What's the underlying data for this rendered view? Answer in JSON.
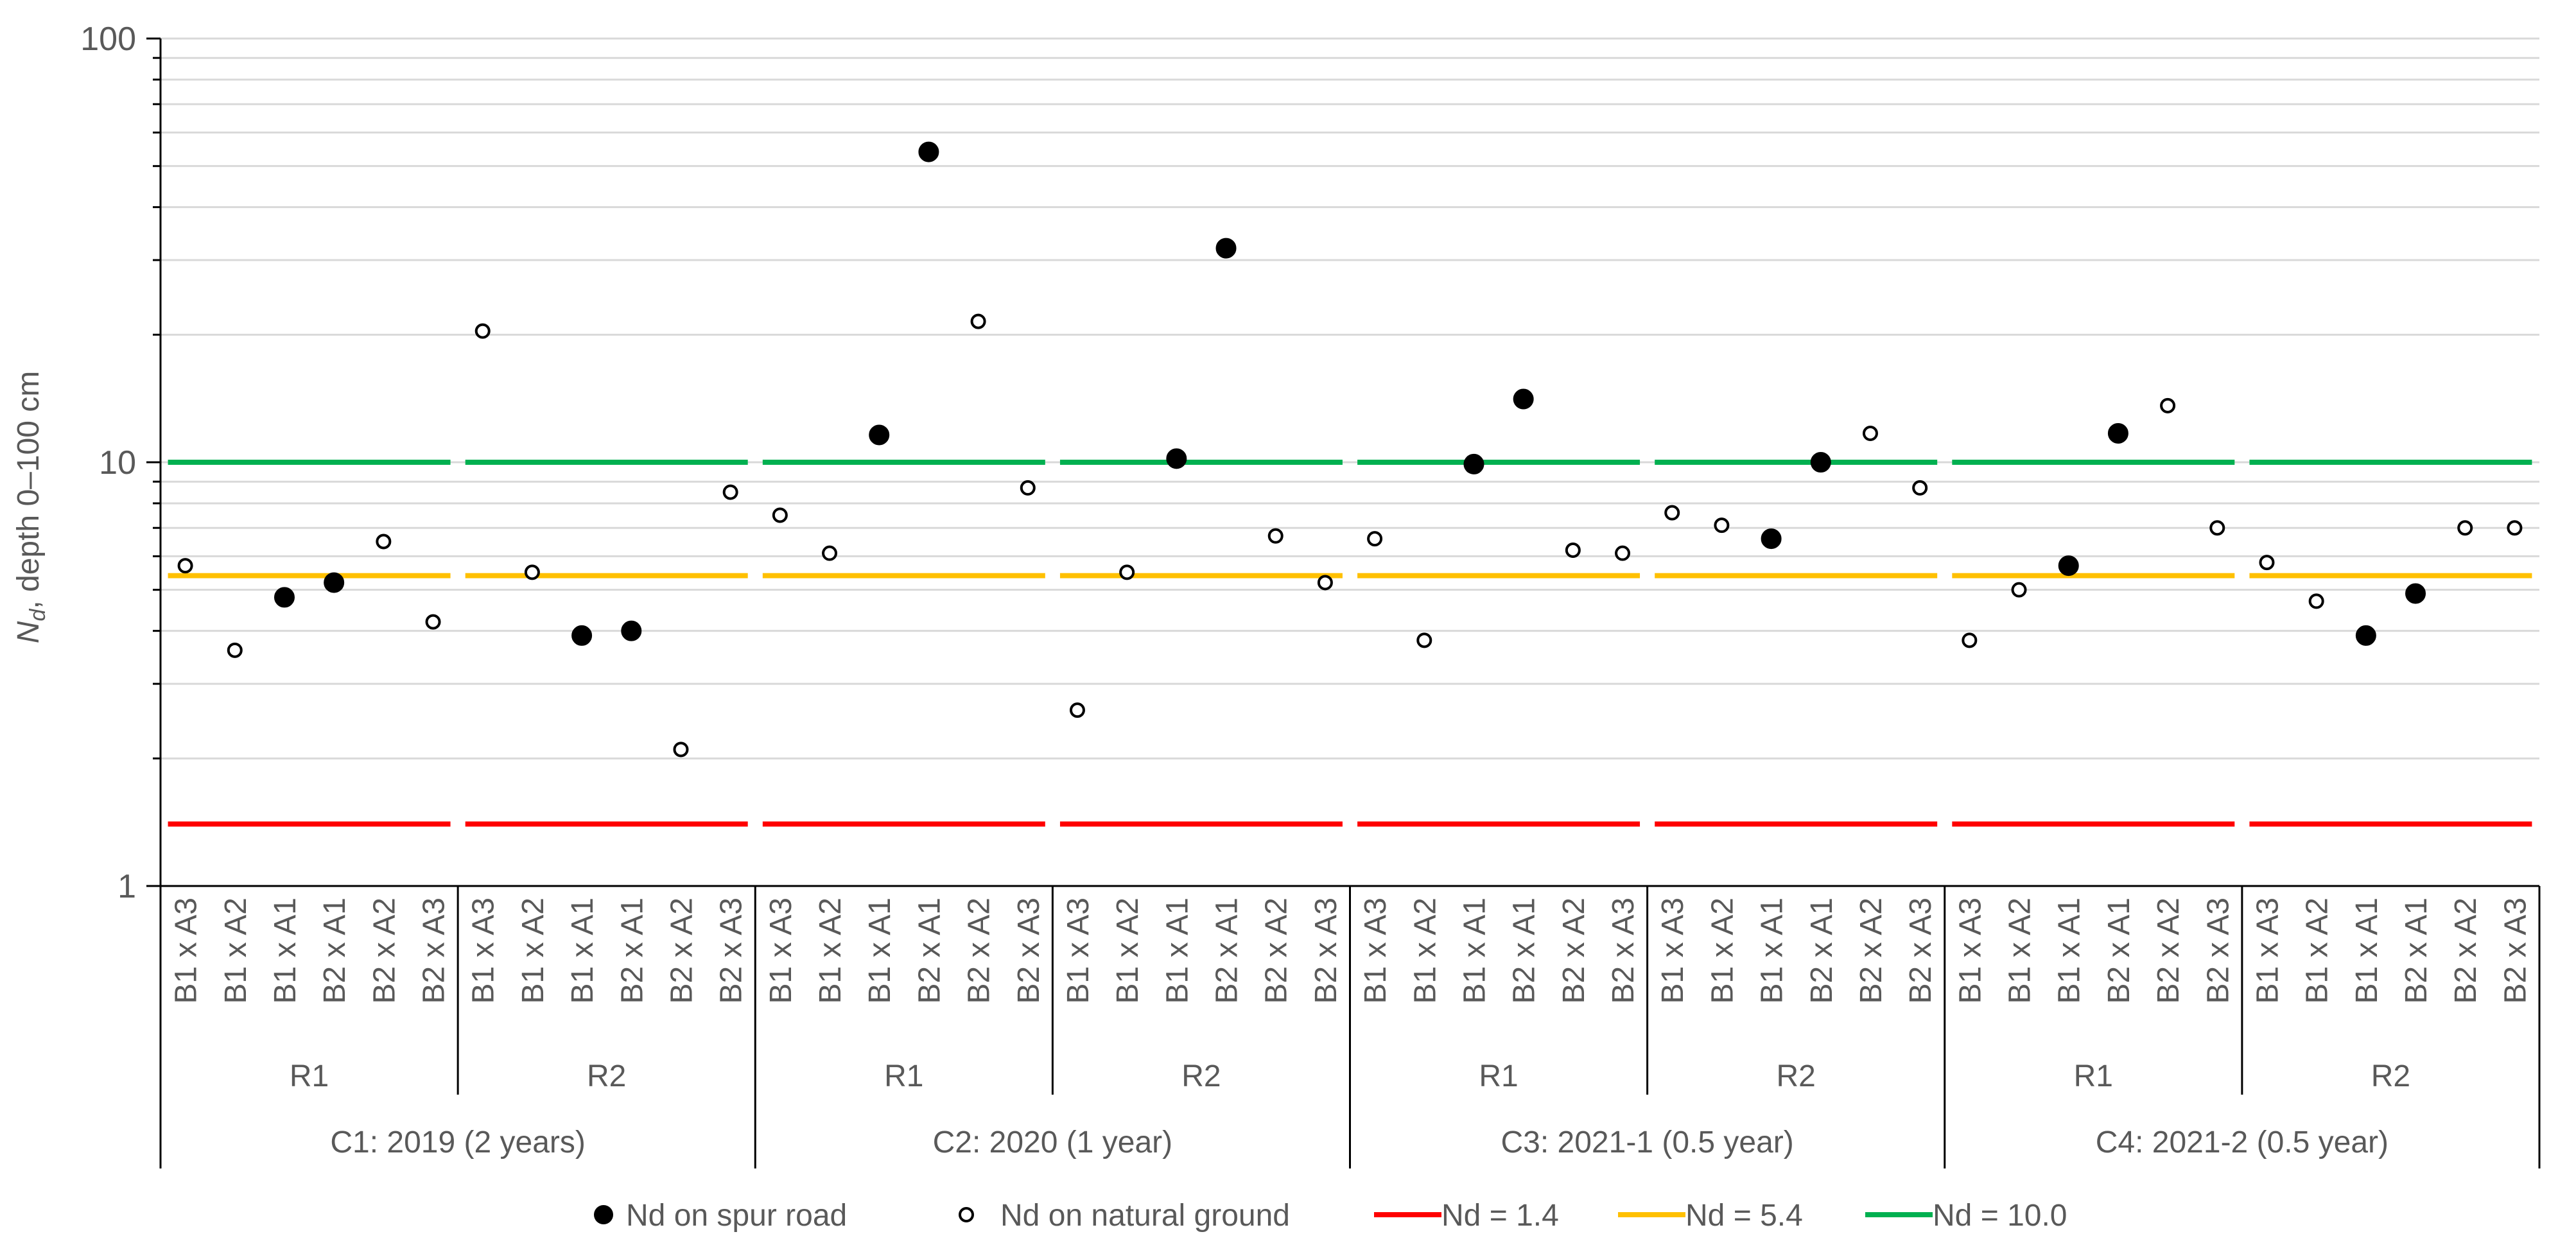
{
  "chart_data": {
    "type": "scatter",
    "yscale": "log",
    "ylim": [
      1,
      100
    ],
    "ylabel_main": "N",
    "ylabel_sub": "d",
    "ylabel_rest": ", depth 0–100 cm",
    "yticks": [
      "1",
      "10",
      "100"
    ],
    "combo_labels": [
      "B1 x A3",
      "B1 x A2",
      "B1 x A1",
      "B2 x A1",
      "B2 x A2",
      "B2 x A3"
    ],
    "cycles": [
      {
        "label": "C1: 2019 (2 years)",
        "groups": [
          "R1",
          "R2"
        ]
      },
      {
        "label": "C2: 2020 (1 year)",
        "groups": [
          "R1",
          "R2"
        ]
      },
      {
        "label": "C3: 2021-1 (0.5 year)",
        "groups": [
          "R1",
          "R2"
        ]
      },
      {
        "label": "C4: 2021-2 (0.5 year)",
        "groups": [
          "R1",
          "R2"
        ]
      }
    ],
    "series": [
      {
        "name": "Nd on spur road",
        "marker": "filled-circle",
        "color": "#000000",
        "points": [
          {
            "cycle": 0,
            "group": 0,
            "combo": 2,
            "value": 4.8
          },
          {
            "cycle": 0,
            "group": 0,
            "combo": 3,
            "value": 5.2
          },
          {
            "cycle": 0,
            "group": 1,
            "combo": 2,
            "value": 3.9
          },
          {
            "cycle": 0,
            "group": 1,
            "combo": 3,
            "value": 4.0
          },
          {
            "cycle": 1,
            "group": 0,
            "combo": 2,
            "value": 11.6
          },
          {
            "cycle": 1,
            "group": 0,
            "combo": 3,
            "value": 54.0
          },
          {
            "cycle": 1,
            "group": 1,
            "combo": 2,
            "value": 10.2
          },
          {
            "cycle": 1,
            "group": 1,
            "combo": 3,
            "value": 32.0
          },
          {
            "cycle": 2,
            "group": 0,
            "combo": 2,
            "value": 9.9
          },
          {
            "cycle": 2,
            "group": 0,
            "combo": 3,
            "value": 14.1
          },
          {
            "cycle": 2,
            "group": 1,
            "combo": 2,
            "value": 6.6
          },
          {
            "cycle": 2,
            "group": 1,
            "combo": 3,
            "value": 10.0
          },
          {
            "cycle": 3,
            "group": 0,
            "combo": 2,
            "value": 5.7
          },
          {
            "cycle": 3,
            "group": 0,
            "combo": 3,
            "value": 11.7
          },
          {
            "cycle": 3,
            "group": 1,
            "combo": 2,
            "value": 3.9
          },
          {
            "cycle": 3,
            "group": 1,
            "combo": 3,
            "value": 4.9
          }
        ]
      },
      {
        "name": "Nd on natural ground",
        "marker": "open-circle",
        "color": "#000000",
        "points": [
          {
            "cycle": 0,
            "group": 0,
            "combo": 0,
            "value": 5.7
          },
          {
            "cycle": 0,
            "group": 0,
            "combo": 1,
            "value": 3.6
          },
          {
            "cycle": 0,
            "group": 0,
            "combo": 4,
            "value": 6.5
          },
          {
            "cycle": 0,
            "group": 0,
            "combo": 5,
            "value": 4.2
          },
          {
            "cycle": 0,
            "group": 1,
            "combo": 0,
            "value": 20.4
          },
          {
            "cycle": 0,
            "group": 1,
            "combo": 1,
            "value": 5.5
          },
          {
            "cycle": 0,
            "group": 1,
            "combo": 4,
            "value": 2.1
          },
          {
            "cycle": 0,
            "group": 1,
            "combo": 5,
            "value": 8.5
          },
          {
            "cycle": 1,
            "group": 0,
            "combo": 0,
            "value": 7.5
          },
          {
            "cycle": 1,
            "group": 0,
            "combo": 1,
            "value": 6.1
          },
          {
            "cycle": 1,
            "group": 0,
            "combo": 4,
            "value": 21.5
          },
          {
            "cycle": 1,
            "group": 0,
            "combo": 5,
            "value": 8.7
          },
          {
            "cycle": 1,
            "group": 1,
            "combo": 0,
            "value": 2.6
          },
          {
            "cycle": 1,
            "group": 1,
            "combo": 1,
            "value": 5.5
          },
          {
            "cycle": 1,
            "group": 1,
            "combo": 4,
            "value": 6.7
          },
          {
            "cycle": 1,
            "group": 1,
            "combo": 5,
            "value": 5.2
          },
          {
            "cycle": 2,
            "group": 0,
            "combo": 0,
            "value": 6.6
          },
          {
            "cycle": 2,
            "group": 0,
            "combo": 1,
            "value": 3.8
          },
          {
            "cycle": 2,
            "group": 0,
            "combo": 4,
            "value": 6.2
          },
          {
            "cycle": 2,
            "group": 0,
            "combo": 5,
            "value": 6.1
          },
          {
            "cycle": 2,
            "group": 1,
            "combo": 0,
            "value": 7.6
          },
          {
            "cycle": 2,
            "group": 1,
            "combo": 1,
            "value": 7.1
          },
          {
            "cycle": 2,
            "group": 1,
            "combo": 4,
            "value": 11.7
          },
          {
            "cycle": 2,
            "group": 1,
            "combo": 5,
            "value": 8.7
          },
          {
            "cycle": 3,
            "group": 0,
            "combo": 0,
            "value": 3.8
          },
          {
            "cycle": 3,
            "group": 0,
            "combo": 1,
            "value": 5.0
          },
          {
            "cycle": 3,
            "group": 0,
            "combo": 4,
            "value": 13.6
          },
          {
            "cycle": 3,
            "group": 0,
            "combo": 5,
            "value": 7.0
          },
          {
            "cycle": 3,
            "group": 1,
            "combo": 0,
            "value": 5.8
          },
          {
            "cycle": 3,
            "group": 1,
            "combo": 1,
            "value": 4.7
          },
          {
            "cycle": 3,
            "group": 1,
            "combo": 4,
            "value": 7.0
          },
          {
            "cycle": 3,
            "group": 1,
            "combo": 5,
            "value": 7.0
          }
        ]
      }
    ],
    "thresholds": [
      {
        "name": "Nd = 1.4",
        "value": 1.4,
        "color": "#ff0000"
      },
      {
        "name": "Nd = 5.4",
        "value": 5.4,
        "color": "#ffc000"
      },
      {
        "name": "Nd = 10.0",
        "value": 10.0,
        "color": "#00b050"
      }
    ],
    "legend": {
      "position": "bottom"
    }
  }
}
